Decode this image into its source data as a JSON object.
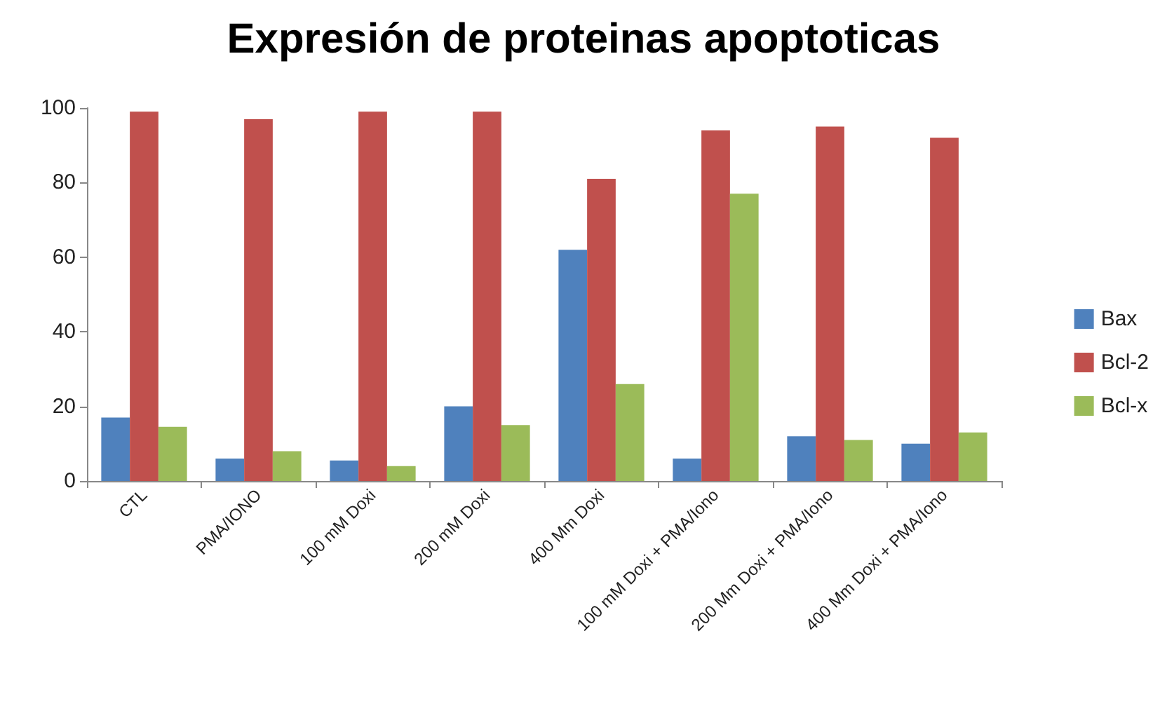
{
  "chart_data": {
    "type": "bar",
    "title": "Expresión de proteinas apoptoticas",
    "categories": [
      "CTL",
      "PMA/IONO",
      "100 mM Doxi",
      "200 mM Doxi",
      "400 Mm Doxi",
      "100 mM Doxi + PMA/Iono",
      "200 Mm Doxi + PMA/Iono",
      "400 Mm Doxi + PMA/Iono"
    ],
    "series": [
      {
        "name": "Bax",
        "color": "#4f81bd",
        "values": [
          17,
          6,
          5.5,
          20,
          62,
          6,
          12,
          10
        ]
      },
      {
        "name": "Bcl-2",
        "color": "#c0504d",
        "values": [
          99,
          97,
          99,
          99,
          81,
          94,
          95,
          92
        ]
      },
      {
        "name": "Bcl-x",
        "color": "#9bbb59",
        "values": [
          14.5,
          8,
          4,
          15,
          26,
          77,
          11,
          13
        ]
      }
    ],
    "ylim": [
      0,
      100
    ],
    "yticks": [
      0,
      20,
      40,
      60,
      80,
      100
    ],
    "grid": false,
    "legend": "right"
  }
}
